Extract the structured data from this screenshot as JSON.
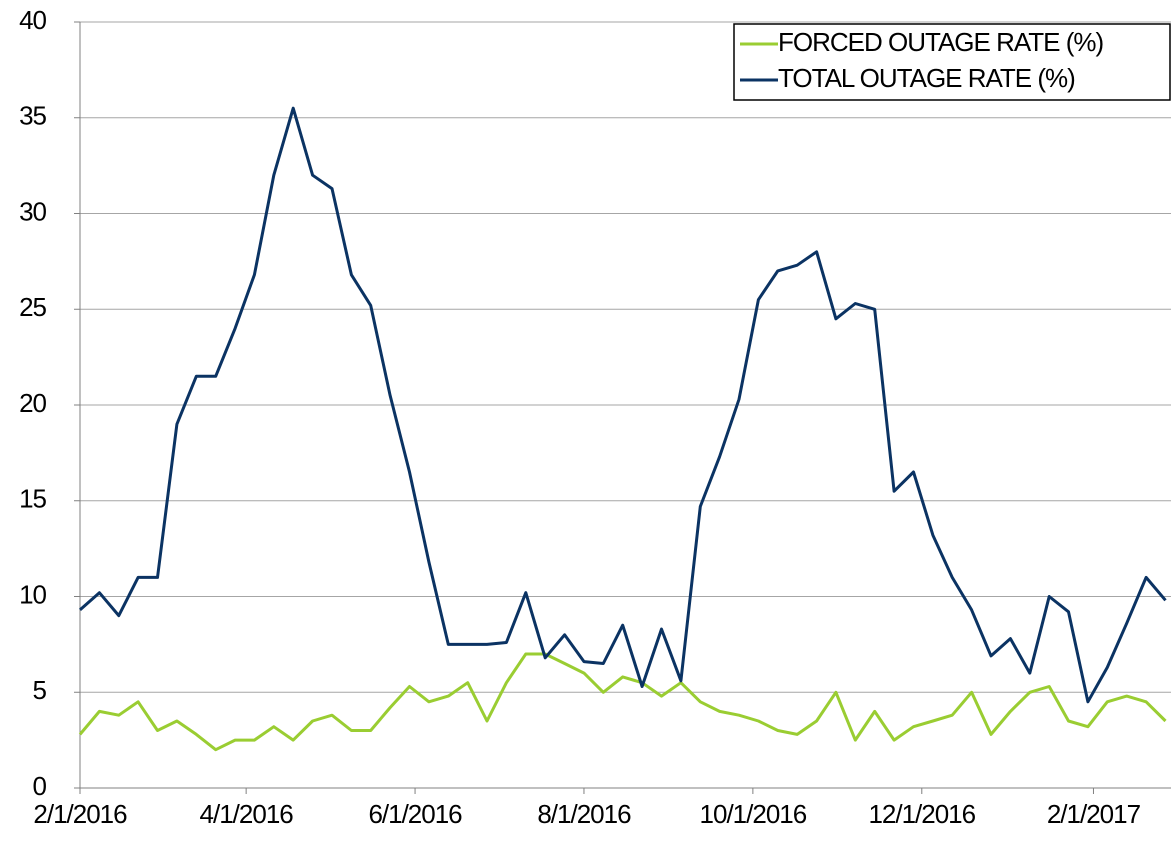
{
  "chart_data": {
    "type": "line",
    "x": [
      "2016-02-01",
      "2016-02-08",
      "2016-02-15",
      "2016-02-22",
      "2016-02-29",
      "2016-03-07",
      "2016-03-14",
      "2016-03-21",
      "2016-03-28",
      "2016-04-04",
      "2016-04-11",
      "2016-04-18",
      "2016-04-25",
      "2016-05-02",
      "2016-05-09",
      "2016-05-16",
      "2016-05-23",
      "2016-05-30",
      "2016-06-06",
      "2016-06-13",
      "2016-06-20",
      "2016-06-27",
      "2016-07-04",
      "2016-07-11",
      "2016-07-18",
      "2016-07-25",
      "2016-08-01",
      "2016-08-08",
      "2016-08-15",
      "2016-08-22",
      "2016-08-29",
      "2016-09-05",
      "2016-09-12",
      "2016-09-19",
      "2016-09-26",
      "2016-10-03",
      "2016-10-10",
      "2016-10-17",
      "2016-10-24",
      "2016-10-31",
      "2016-11-07",
      "2016-11-14",
      "2016-11-21",
      "2016-11-28",
      "2016-12-05",
      "2016-12-12",
      "2016-12-19",
      "2016-12-26",
      "2017-01-02",
      "2017-01-09",
      "2017-01-16",
      "2017-01-23",
      "2017-01-30",
      "2017-02-06",
      "2017-02-13",
      "2017-02-20",
      "2017-02-27"
    ],
    "series": [
      {
        "name": "FORCED OUTAGE RATE (%)",
        "color": "#9acd32",
        "values": [
          2.8,
          4,
          3.8,
          4.5,
          3,
          3.5,
          2.8,
          2,
          2.5,
          2.5,
          3.2,
          2.5,
          3.5,
          3.8,
          3,
          3,
          4.2,
          5.3,
          4.5,
          4.8,
          5.5,
          3.5,
          5.5,
          7,
          7,
          6.5,
          6,
          5,
          5.8,
          5.5,
          4.8,
          5.5,
          4.5,
          4,
          3.8,
          3.5,
          3,
          2.8,
          3.5,
          5,
          2.5,
          4,
          2.5,
          3.2,
          3.5,
          3.8,
          5,
          2.8,
          4,
          5,
          5.3,
          3.5,
          3.2,
          4.5,
          4.8,
          4.5,
          3.5
        ]
      },
      {
        "name": "TOTAL OUTAGE RATE (%)",
        "color": "#0b3363",
        "values": [
          9.3,
          10.2,
          9,
          11,
          11,
          19,
          21.5,
          21.5,
          24,
          26.8,
          32,
          35.5,
          32,
          31.3,
          26.8,
          25.2,
          20.5,
          16.5,
          11.8,
          7.5,
          7.5,
          7.5,
          7.6,
          10.2,
          6.8,
          8,
          6.6,
          6.5,
          8.5,
          5.3,
          8.3,
          5.6,
          14.7,
          17.3,
          20.3,
          25.5,
          27,
          27.3,
          28,
          24.5,
          25.3,
          25,
          15.5,
          16.5,
          13.2,
          11,
          9.3,
          6.9,
          7.8,
          6,
          10,
          9.2,
          4.5,
          6.3,
          8.6,
          11,
          9.8
        ]
      }
    ],
    "xlim": [
      "2016-02-01",
      "2017-03-01"
    ],
    "xticks": [
      {
        "value": "2016-02-01",
        "label": "2/1/2016"
      },
      {
        "value": "2016-04-01",
        "label": "4/1/2016"
      },
      {
        "value": "2016-06-01",
        "label": "6/1/2016"
      },
      {
        "value": "2016-08-01",
        "label": "8/1/2016"
      },
      {
        "value": "2016-10-01",
        "label": "10/1/2016"
      },
      {
        "value": "2016-12-01",
        "label": "12/1/2016"
      },
      {
        "value": "2017-02-01",
        "label": "2/1/2017"
      }
    ],
    "ylim": [
      0,
      40
    ],
    "yticks": [
      0,
      5,
      10,
      15,
      20,
      25,
      30,
      35,
      40
    ],
    "grid": true,
    "legend": "top-right"
  }
}
